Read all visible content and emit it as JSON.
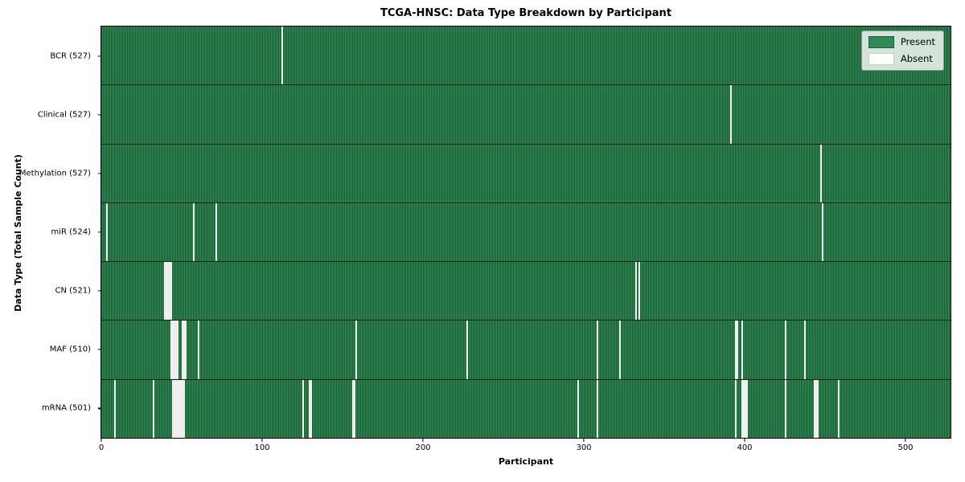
{
  "chart_data": {
    "type": "heatmap",
    "title": "TCGA-HNSC: Data Type Breakdown by Participant",
    "xlabel": "Participant",
    "ylabel": "Data Type (Total Sample Count)",
    "total_participants": 528,
    "x_ticks": [
      0,
      100,
      200,
      300,
      400,
      500
    ],
    "legend": [
      "Present",
      "Absent"
    ],
    "legend_position": "upper right",
    "colors": {
      "present": "#2e8b57",
      "present_stripe_dark": "#1e5c36",
      "absent": "#ffffff",
      "plot_border": "#000000"
    },
    "grid": false,
    "rows": [
      {
        "label": "BCR (527)",
        "data_type": "BCR",
        "total_samples": 527,
        "absent_participants": [
          112
        ]
      },
      {
        "label": "Clinical (527)",
        "data_type": "Clinical",
        "total_samples": 527,
        "absent_participants": [
          391
        ]
      },
      {
        "label": "Methylation (527)",
        "data_type": "Methylation",
        "total_samples": 527,
        "absent_participants": [
          447
        ]
      },
      {
        "label": "miR (524)",
        "data_type": "miR",
        "total_samples": 524,
        "absent_participants": [
          3,
          57,
          71,
          448
        ]
      },
      {
        "label": "CN (521)",
        "data_type": "CN",
        "total_samples": 521,
        "absent_participants": [
          39,
          40,
          41,
          42,
          43,
          332,
          334
        ]
      },
      {
        "label": "MAF (510)",
        "data_type": "MAF",
        "total_samples": 510,
        "absent_participants": [
          43,
          44,
          45,
          46,
          47,
          50,
          51,
          52,
          60,
          158,
          227,
          308,
          322,
          394,
          395,
          398,
          425,
          437
        ]
      },
      {
        "label": "mRNA (501)",
        "data_type": "mRNA",
        "total_samples": 501,
        "absent_participants": [
          8,
          32,
          44,
          45,
          46,
          47,
          48,
          49,
          50,
          51,
          125,
          129,
          130,
          156,
          157,
          296,
          308,
          394,
          398,
          399,
          400,
          401,
          425,
          443,
          444,
          445,
          458
        ]
      }
    ]
  }
}
